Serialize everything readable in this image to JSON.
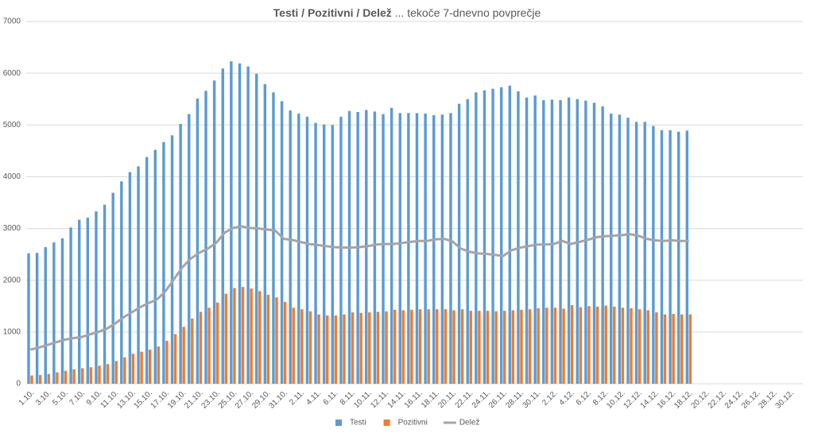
{
  "chart_data": {
    "type": "bar-line",
    "title": "Testi / Pozitivni / Delež",
    "subtitle": "... tekoče 7-dnevno povprečje",
    "categories": [
      "1.10.",
      null,
      "3.10.",
      null,
      "5.10.",
      null,
      "7.10.",
      null,
      "9.10.",
      null,
      "11.10.",
      null,
      "13.10.",
      null,
      "15.10.",
      null,
      "17.10.",
      null,
      "19.10.",
      null,
      "21.10.",
      null,
      "23.10.",
      null,
      "25.10.",
      null,
      "27.10.",
      null,
      "29.10.",
      null,
      "31.10.",
      null,
      "2.11.",
      null,
      "4.11.",
      null,
      "6.11.",
      null,
      "8.11.",
      null,
      "10.11.",
      null,
      "12.11.",
      null,
      "14.11.",
      null,
      "16.11.",
      null,
      "18.11.",
      null,
      "20.11.",
      null,
      "22.11.",
      null,
      "24.11.",
      null,
      "26.11.",
      null,
      "28.11.",
      null,
      "30.11.",
      null,
      "2.12.",
      null,
      "4.12.",
      null,
      "6.12.",
      null,
      "8.12.",
      null,
      "10.12.",
      null,
      "12.12.",
      null,
      "14.12.",
      null,
      "16.12.",
      null,
      "18.12.",
      null,
      "20.12.",
      null,
      "22.12.",
      null,
      "24.12.",
      null,
      "26.12.",
      null,
      "28.12.",
      null,
      "30.12.",
      null
    ],
    "series": [
      {
        "name": "Testi",
        "type": "bar",
        "color": "#5b9bd5",
        "values": [
          2520,
          2530,
          2640,
          2730,
          2810,
          3020,
          3170,
          3210,
          3330,
          3460,
          3690,
          3910,
          4090,
          4200,
          4380,
          4520,
          4670,
          4800,
          5020,
          5210,
          5510,
          5660,
          5860,
          6090,
          6230,
          6190,
          6130,
          5990,
          5790,
          5630,
          5460,
          5280,
          5220,
          5160,
          5040,
          5010,
          5000,
          5160,
          5270,
          5250,
          5290,
          5260,
          5210,
          5330,
          5230,
          5230,
          5230,
          5220,
          5190,
          5200,
          5230,
          5410,
          5500,
          5630,
          5670,
          5700,
          5730,
          5760,
          5650,
          5530,
          5570,
          5480,
          5490,
          5480,
          5530,
          5500,
          5470,
          5430,
          5360,
          5220,
          5200,
          5140,
          5060,
          5060,
          4980,
          4900,
          4900,
          4870,
          4890,
          null,
          null,
          null,
          null,
          null,
          null,
          null,
          null,
          null,
          null,
          null,
          null,
          null
        ]
      },
      {
        "name": "Pozitivni",
        "type": "bar",
        "color": "#ed7d31",
        "values": [
          160,
          170,
          190,
          220,
          250,
          280,
          300,
          320,
          350,
          380,
          440,
          510,
          580,
          620,
          660,
          720,
          830,
          960,
          1100,
          1260,
          1390,
          1470,
          1570,
          1740,
          1850,
          1870,
          1840,
          1790,
          1720,
          1670,
          1580,
          1470,
          1440,
          1400,
          1340,
          1320,
          1320,
          1340,
          1380,
          1370,
          1380,
          1390,
          1400,
          1430,
          1420,
          1430,
          1440,
          1440,
          1440,
          1440,
          1420,
          1440,
          1410,
          1410,
          1410,
          1400,
          1410,
          1420,
          1430,
          1440,
          1460,
          1470,
          1470,
          1450,
          1520,
          1480,
          1500,
          1490,
          1510,
          1490,
          1470,
          1460,
          1440,
          1420,
          1380,
          1340,
          1350,
          1340,
          1340,
          null,
          null,
          null,
          null,
          null,
          null,
          null,
          null,
          null,
          null,
          null,
          null,
          null
        ]
      },
      {
        "name": "Delež",
        "type": "line",
        "color": "#a5a5a5",
        "values": [
          660,
          700,
          750,
          800,
          850,
          880,
          900,
          950,
          1000,
          1060,
          1160,
          1280,
          1380,
          1480,
          1560,
          1630,
          1790,
          2020,
          2250,
          2420,
          2530,
          2610,
          2720,
          2920,
          3010,
          3040,
          3010,
          3000,
          2980,
          2960,
          2800,
          2780,
          2740,
          2700,
          2680,
          2660,
          2640,
          2630,
          2630,
          2640,
          2660,
          2690,
          2700,
          2700,
          2720,
          2740,
          2760,
          2760,
          2790,
          2800,
          2750,
          2610,
          2550,
          2520,
          2510,
          2490,
          2470,
          2580,
          2630,
          2660,
          2690,
          2690,
          2700,
          2760,
          2700,
          2740,
          2780,
          2830,
          2850,
          2860,
          2870,
          2890,
          2860,
          2800,
          2770,
          2760,
          2770,
          2760,
          2760,
          null,
          null,
          null,
          null,
          null,
          null,
          null,
          null,
          null,
          null,
          null,
          null,
          null
        ]
      }
    ],
    "ylim": [
      0,
      7000
    ],
    "yticks": [
      0,
      1000,
      2000,
      3000,
      4000,
      5000,
      6000,
      7000
    ],
    "grid": true,
    "legend": "bottom"
  }
}
